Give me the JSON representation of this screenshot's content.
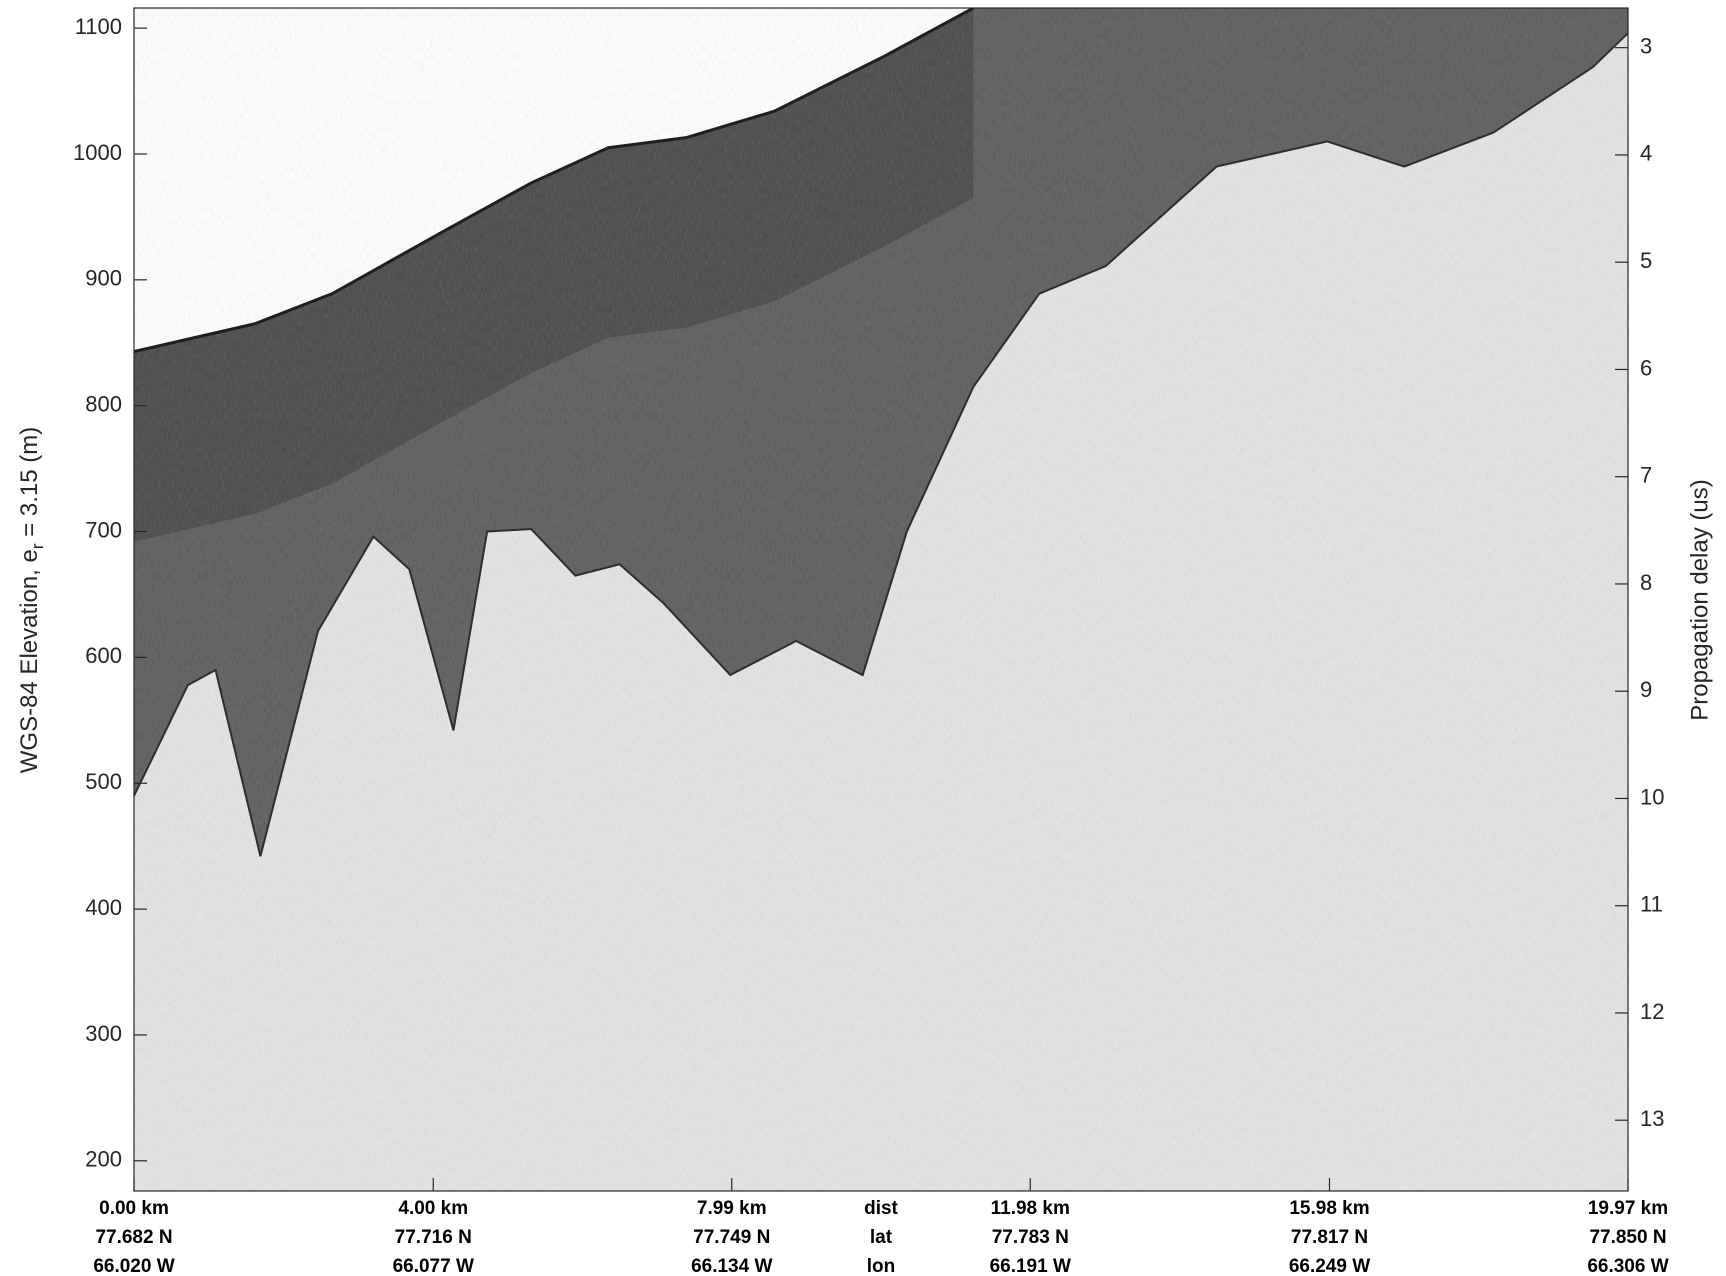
{
  "chart_data": {
    "type": "echogram",
    "ylabel": "WGS-84 Elevation, e",
    "ylabel_sub": "r",
    "ylabel_rest": " = 3.15 (m)",
    "y2label": "Propagation delay (us)",
    "xlim": [
      0,
      19.97
    ],
    "ylim": [
      176,
      1116
    ],
    "yticks": [
      200,
      300,
      400,
      500,
      600,
      700,
      800,
      900,
      1000,
      1100
    ],
    "y2lim": [
      2.63,
      13.66
    ],
    "y2_reversed": true,
    "y2ticks": [
      3,
      4,
      5,
      6,
      7,
      8,
      9,
      10,
      11,
      12,
      13
    ],
    "xticks": [
      {
        "value": 0,
        "label": "0.00 km"
      },
      {
        "value": 4.0,
        "label": "4.00 km"
      },
      {
        "value": 7.99,
        "label": "7.99 km"
      },
      {
        "value": 11.98,
        "label": "11.98 km"
      },
      {
        "value": 15.98,
        "label": "15.98 km"
      },
      {
        "value": 19.97,
        "label": "19.97 km"
      }
    ],
    "lat_labels": [
      "77.682 N",
      "77.716 N",
      "77.749 N",
      "77.783 N",
      "77.817 N",
      "77.850 N"
    ],
    "lon_labels": [
      "66.020 W",
      "66.077 W",
      "66.134 W",
      "66.191 W",
      "66.249 W",
      "66.306 W"
    ],
    "row_labels": [
      "dist",
      "lat",
      "lon"
    ],
    "surface": {
      "x": [
        0,
        1.61,
        2.65,
        4.12,
        5.31,
        6.34,
        7.38,
        8.56,
        10.04,
        11.22
      ],
      "values": [
        843,
        865,
        889,
        938,
        977,
        1005,
        1013,
        1034,
        1078,
        1116
      ]
    },
    "bed": {
      "x": [
        0,
        0.72,
        1.09,
        1.69,
        2.46,
        3.2,
        3.68,
        4.27,
        4.72,
        5.31,
        5.9,
        6.49,
        7.08,
        7.97,
        8.85,
        9.74,
        10.33,
        11.22,
        12.1,
        12.99,
        14.47,
        15.95,
        16.98,
        18.17,
        19.5,
        19.97
      ],
      "values": [
        490,
        578,
        590,
        442,
        621,
        696,
        670,
        542,
        700,
        702,
        665,
        674,
        643,
        586,
        613,
        586,
        700,
        815,
        889,
        911,
        990,
        1010,
        990,
        1017,
        1069,
        1096
      ]
    }
  }
}
